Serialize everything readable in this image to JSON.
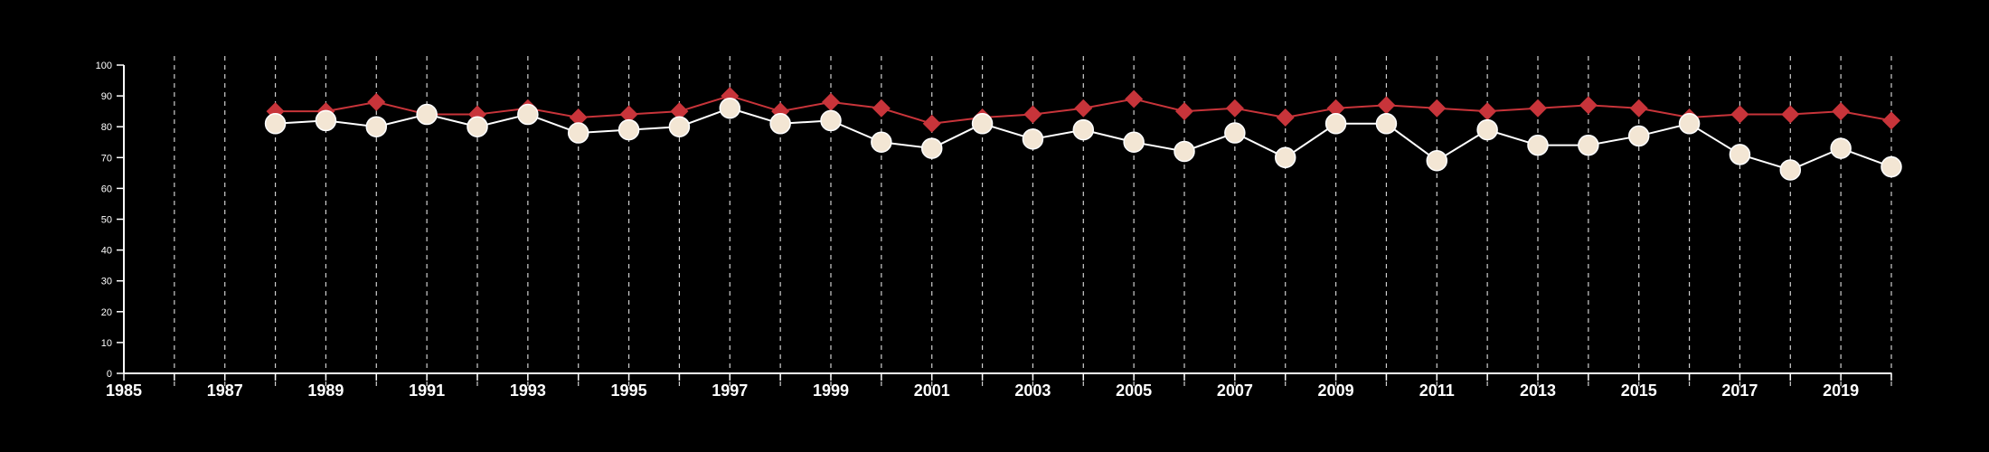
{
  "colors": {
    "background": "#000000",
    "axis": "#ffffff",
    "gridline": "#cfcfcf",
    "series_red": "#c8343a",
    "series_cream": "#f3e6d4",
    "series_cream_line": "#ffffff"
  },
  "chart_data": {
    "type": "line",
    "title": "",
    "xlabel": "",
    "ylabel": "",
    "xlim": [
      1985,
      2020
    ],
    "ylim": [
      0,
      100
    ],
    "grid": "vertical-dashed",
    "x_ticks": [
      1985,
      1986,
      1987,
      1988,
      1989,
      1990,
      1991,
      1992,
      1993,
      1994,
      1995,
      1996,
      1997,
      1998,
      1999,
      2000,
      2001,
      2002,
      2003,
      2004,
      2005,
      2006,
      2007,
      2008,
      2009,
      2010,
      2011,
      2012,
      2013,
      2014,
      2015,
      2016,
      2017,
      2018,
      2019,
      2020
    ],
    "x_tick_labels": [
      "1985",
      "1987",
      "1989",
      "1991",
      "1993",
      "1995",
      "1997",
      "1999",
      "2001",
      "2003",
      "2005",
      "2007",
      "2009",
      "2011",
      "2013",
      "2015",
      "2017",
      "2019"
    ],
    "y_ticks": [
      "0",
      "10",
      "20",
      "30",
      "40",
      "50",
      "60",
      "70",
      "80",
      "90",
      "100"
    ],
    "x": [
      1988,
      1989,
      1990,
      1991,
      1992,
      1993,
      1994,
      1995,
      1996,
      1997,
      1998,
      1999,
      2000,
      2001,
      2002,
      2003,
      2004,
      2005,
      2006,
      2007,
      2008,
      2009,
      2010,
      2011,
      2012,
      2013,
      2014,
      2015,
      2016,
      2017,
      2018,
      2019,
      2020
    ],
    "series": [
      {
        "marker": "diamond",
        "color": "#c8343a",
        "values": [
          85,
          85,
          88,
          84,
          84,
          86,
          83,
          84,
          85,
          90,
          85,
          88,
          86,
          81,
          83,
          84,
          86,
          89,
          85,
          86,
          83,
          86,
          87,
          86,
          85,
          86,
          87,
          86,
          83,
          84,
          84,
          85,
          82
        ]
      },
      {
        "marker": "circle",
        "color": "#f3e6d4",
        "values": [
          81,
          82,
          80,
          84,
          80,
          84,
          78,
          79,
          80,
          86,
          81,
          82,
          75,
          73,
          81,
          76,
          79,
          75,
          72,
          78,
          70,
          81,
          81,
          69,
          79,
          74,
          74,
          77,
          81,
          71,
          66,
          73,
          67
        ]
      }
    ]
  }
}
